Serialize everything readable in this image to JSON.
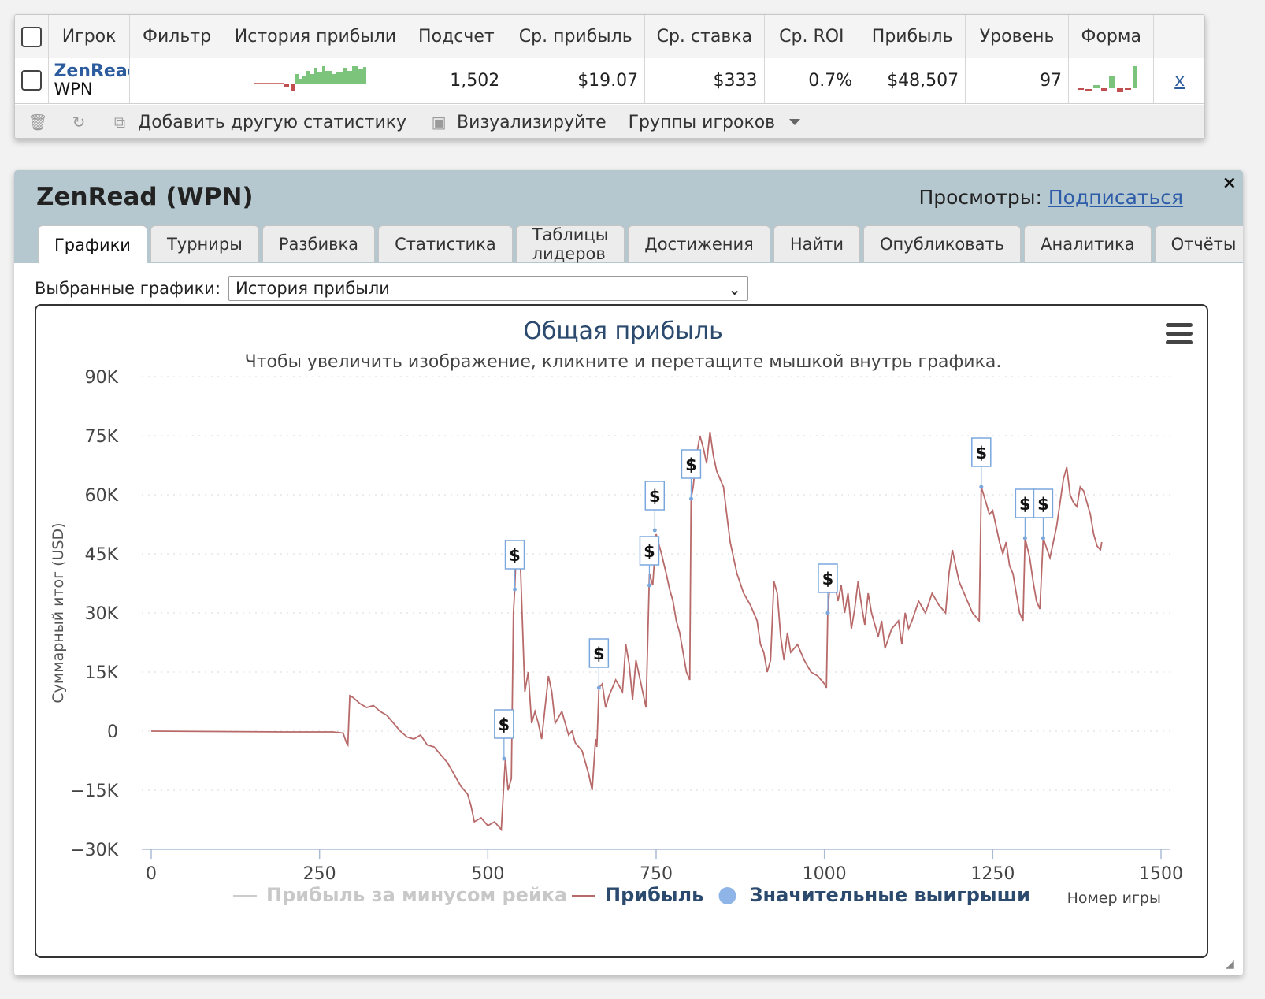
{
  "stats_table": {
    "columns": [
      "Игрок",
      "Фильтр",
      "История прибыли",
      "Подсчет",
      "Ср. прибыль",
      "Ср. ставка",
      "Ср. ROI",
      "Прибыль",
      "Уровень",
      "Форма"
    ],
    "row": {
      "player_name": "ZenRead",
      "network": "WPN",
      "filter": "",
      "count": "1,502",
      "avg_profit": "$19.07",
      "avg_stake": "$333",
      "avg_roi": "0.7%",
      "profit": "$48,507",
      "ability": "97",
      "remove": "x"
    },
    "toolbar": {
      "add_stat": "Добавить другую статистику",
      "visualize": "Визуализируйте",
      "player_groups": "Группы игроков"
    }
  },
  "player_window": {
    "title": "ZenRead (WPN)",
    "views_label": "Просмотры:",
    "subscribe_link": "Подписаться",
    "close": "×",
    "tabs": [
      "Графики",
      "Турниры",
      "Разбивка",
      "Статистика",
      "Таблицы лидеров",
      "Достижения",
      "Найти",
      "Опубликовать",
      "Аналитика",
      "Отчёты"
    ],
    "active_tab": 0,
    "selected_graph_label": "Выбранные графики:",
    "selected_graph_value": "История прибыли"
  },
  "colors": {
    "profit_line": "#b86a6a",
    "big_win": "#7aa7de",
    "link": "#2d5c9e",
    "spark_pos": "#7cc47c",
    "spark_neg": "#c05050"
  },
  "chart_data": {
    "type": "line",
    "title": "Общая прибыль",
    "subtitle": "Чтобы увеличить изображение, кликните и перетащите мышкой внутрь графика.",
    "ylabel": "Суммарный итог (USD)",
    "xlabel": "Номер игры",
    "xlim": [
      0,
      1500
    ],
    "ylim": [
      -30000,
      90000
    ],
    "x_ticks": [
      "0",
      "250",
      "500",
      "750",
      "1000",
      "1250",
      "1500"
    ],
    "y_ticks": [
      "90K",
      "75K",
      "60K",
      "45K",
      "30K",
      "15K",
      "0",
      "−15K",
      "−30K"
    ],
    "grid": true,
    "legend": [
      {
        "name": "Прибыль за минусом рейка",
        "color": "#cccccc",
        "kind": "line",
        "muted": true
      },
      {
        "name": "Прибыль",
        "color": "#b86a6a",
        "kind": "line"
      },
      {
        "name": "Значительные выигрыши",
        "color": "#8fb4e8",
        "kind": "dot"
      }
    ],
    "series": [
      {
        "name": "Прибыль",
        "points": [
          [
            0,
            0
          ],
          [
            100,
            -100
          ],
          [
            200,
            -200
          ],
          [
            270,
            -200
          ],
          [
            285,
            -500
          ],
          [
            290,
            -3000
          ],
          [
            292,
            -3500
          ],
          [
            295,
            9000
          ],
          [
            300,
            8500
          ],
          [
            310,
            7000
          ],
          [
            320,
            6000
          ],
          [
            330,
            6500
          ],
          [
            340,
            5000
          ],
          [
            350,
            4000
          ],
          [
            360,
            2000
          ],
          [
            370,
            0
          ],
          [
            380,
            -1500
          ],
          [
            390,
            -2000
          ],
          [
            400,
            -1000
          ],
          [
            410,
            -3500
          ],
          [
            420,
            -4000
          ],
          [
            430,
            -6000
          ],
          [
            440,
            -8000
          ],
          [
            450,
            -11000
          ],
          [
            460,
            -14000
          ],
          [
            470,
            -16000
          ],
          [
            475,
            -19000
          ],
          [
            480,
            -23000
          ],
          [
            490,
            -22000
          ],
          [
            500,
            -24000
          ],
          [
            510,
            -23000
          ],
          [
            520,
            -25000
          ],
          [
            524,
            -13000
          ],
          [
            526,
            -7000
          ],
          [
            530,
            -15000
          ],
          [
            535,
            -12000
          ],
          [
            538,
            30000
          ],
          [
            540,
            36000
          ],
          [
            542,
            45000
          ],
          [
            548,
            44000
          ],
          [
            555,
            10000
          ],
          [
            560,
            15000
          ],
          [
            565,
            2000
          ],
          [
            570,
            5000
          ],
          [
            575,
            2000
          ],
          [
            580,
            -2000
          ],
          [
            590,
            14000
          ],
          [
            595,
            10000
          ],
          [
            600,
            2000
          ],
          [
            610,
            5000
          ],
          [
            620,
            -1000
          ],
          [
            625,
            0
          ],
          [
            630,
            -3000
          ],
          [
            640,
            -5000
          ],
          [
            650,
            -11000
          ],
          [
            655,
            -15000
          ],
          [
            660,
            -2000
          ],
          [
            662,
            -4000
          ],
          [
            665,
            11000
          ],
          [
            670,
            12000
          ],
          [
            675,
            6000
          ],
          [
            680,
            9000
          ],
          [
            690,
            13000
          ],
          [
            700,
            10000
          ],
          [
            705,
            22000
          ],
          [
            710,
            17000
          ],
          [
            715,
            8000
          ],
          [
            720,
            18000
          ],
          [
            730,
            10000
          ],
          [
            735,
            6000
          ],
          [
            740,
            40000
          ],
          [
            745,
            37000
          ],
          [
            750,
            50000
          ],
          [
            758,
            45000
          ],
          [
            765,
            40000
          ],
          [
            770,
            36000
          ],
          [
            775,
            33000
          ],
          [
            780,
            28000
          ],
          [
            785,
            25000
          ],
          [
            790,
            20000
          ],
          [
            795,
            15000
          ],
          [
            800,
            13000
          ],
          [
            802,
            59000
          ],
          [
            805,
            62000
          ],
          [
            810,
            70000
          ],
          [
            815,
            75000
          ],
          [
            820,
            72000
          ],
          [
            825,
            68000
          ],
          [
            830,
            76000
          ],
          [
            835,
            70000
          ],
          [
            840,
            66000
          ],
          [
            850,
            62000
          ],
          [
            855,
            55000
          ],
          [
            860,
            48000
          ],
          [
            870,
            40000
          ],
          [
            880,
            35000
          ],
          [
            890,
            32000
          ],
          [
            900,
            28000
          ],
          [
            905,
            22000
          ],
          [
            910,
            20000
          ],
          [
            915,
            15000
          ],
          [
            920,
            18000
          ],
          [
            925,
            38000
          ],
          [
            930,
            35000
          ],
          [
            935,
            24000
          ],
          [
            940,
            18000
          ],
          [
            945,
            25000
          ],
          [
            950,
            20000
          ],
          [
            960,
            22000
          ],
          [
            970,
            18000
          ],
          [
            980,
            15000
          ],
          [
            990,
            14000
          ],
          [
            1000,
            12000
          ],
          [
            1003,
            11000
          ],
          [
            1005,
            30000
          ],
          [
            1010,
            42000
          ],
          [
            1015,
            38000
          ],
          [
            1020,
            33000
          ],
          [
            1025,
            37000
          ],
          [
            1030,
            30000
          ],
          [
            1035,
            35000
          ],
          [
            1040,
            26000
          ],
          [
            1045,
            31000
          ],
          [
            1050,
            38000
          ],
          [
            1055,
            32000
          ],
          [
            1060,
            27000
          ],
          [
            1065,
            35000
          ],
          [
            1070,
            30000
          ],
          [
            1080,
            24000
          ],
          [
            1085,
            28000
          ],
          [
            1090,
            21000
          ],
          [
            1100,
            26000
          ],
          [
            1110,
            28000
          ],
          [
            1115,
            22000
          ],
          [
            1120,
            30000
          ],
          [
            1125,
            26000
          ],
          [
            1130,
            28000
          ],
          [
            1140,
            33000
          ],
          [
            1150,
            30000
          ],
          [
            1160,
            35000
          ],
          [
            1170,
            32000
          ],
          [
            1180,
            30000
          ],
          [
            1185,
            40000
          ],
          [
            1190,
            46000
          ],
          [
            1195,
            42000
          ],
          [
            1200,
            38000
          ],
          [
            1210,
            34000
          ],
          [
            1220,
            30000
          ],
          [
            1230,
            28000
          ],
          [
            1233,
            62000
          ],
          [
            1240,
            58000
          ],
          [
            1245,
            55000
          ],
          [
            1250,
            56000
          ],
          [
            1255,
            52000
          ],
          [
            1260,
            48000
          ],
          [
            1265,
            45000
          ],
          [
            1270,
            48000
          ],
          [
            1275,
            42000
          ],
          [
            1280,
            40000
          ],
          [
            1285,
            35000
          ],
          [
            1290,
            30000
          ],
          [
            1295,
            28000
          ],
          [
            1298,
            49000
          ],
          [
            1305,
            44000
          ],
          [
            1310,
            38000
          ],
          [
            1315,
            33000
          ],
          [
            1320,
            31000
          ],
          [
            1325,
            49000
          ],
          [
            1335,
            44000
          ],
          [
            1340,
            48000
          ],
          [
            1345,
            52000
          ],
          [
            1350,
            58000
          ],
          [
            1355,
            64000
          ],
          [
            1360,
            67000
          ],
          [
            1365,
            60000
          ],
          [
            1370,
            58000
          ],
          [
            1375,
            57000
          ],
          [
            1380,
            62000
          ],
          [
            1385,
            61000
          ],
          [
            1390,
            58000
          ],
          [
            1395,
            55000
          ],
          [
            1400,
            50000
          ],
          [
            1405,
            47000
          ],
          [
            1410,
            46000
          ],
          [
            1412,
            48000
          ]
        ]
      }
    ],
    "big_wins": [
      {
        "x": 524,
        "y": -7000
      },
      {
        "x": 540,
        "y": 36000
      },
      {
        "x": 665,
        "y": 11000
      },
      {
        "x": 740,
        "y": 37000
      },
      {
        "x": 748,
        "y": 51000
      },
      {
        "x": 802,
        "y": 59000
      },
      {
        "x": 1005,
        "y": 30000
      },
      {
        "x": 1233,
        "y": 62000
      },
      {
        "x": 1298,
        "y": 49000
      },
      {
        "x": 1325,
        "y": 49000
      }
    ],
    "big_win_label": "$"
  }
}
